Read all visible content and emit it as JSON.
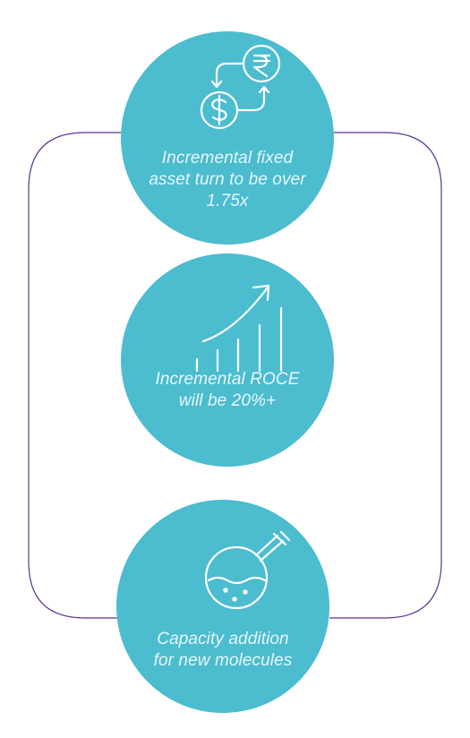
{
  "colors": {
    "teal": "#4cbccf",
    "outline": "#5b3591",
    "icon_stroke": "#ffffff"
  },
  "steps": [
    {
      "icon": "currency-exchange-icon",
      "caption_lines": [
        "Incremental fixed",
        "asset turn to be over",
        "1.75x"
      ]
    },
    {
      "icon": "growth-chart-icon",
      "caption_lines": [
        "Incremental ROCE",
        "will be 20%+"
      ]
    },
    {
      "icon": "flask-icon",
      "caption_lines": [
        "Capacity addition",
        "for new molecules"
      ]
    }
  ]
}
